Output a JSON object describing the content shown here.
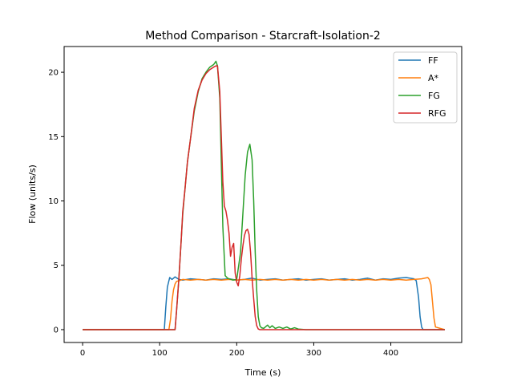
{
  "chart_data": {
    "type": "line",
    "title": "Method Comparison - Starcraft-Isolation-2",
    "xlabel": "Time (s)",
    "ylabel": "Flow (units/s)",
    "xlim": [
      -24,
      492
    ],
    "ylim": [
      -1.0,
      22.0
    ],
    "xticks": [
      0,
      100,
      200,
      300,
      400
    ],
    "yticks": [
      0,
      5,
      10,
      15,
      20
    ],
    "grid": false,
    "legend": "top-right",
    "series": [
      {
        "name": "FF",
        "color": "#1f77b4",
        "x": [
          0,
          106,
          108,
          110,
          113,
          116,
          120,
          125,
          130,
          140,
          150,
          160,
          170,
          180,
          190,
          200,
          210,
          220,
          230,
          240,
          250,
          260,
          270,
          280,
          290,
          300,
          310,
          320,
          330,
          340,
          350,
          360,
          370,
          380,
          390,
          400,
          410,
          420,
          430,
          433,
          436,
          438,
          440,
          442,
          470
        ],
        "y": [
          0,
          0,
          1.8,
          3.3,
          4.05,
          3.9,
          4.1,
          3.9,
          3.85,
          3.95,
          3.9,
          3.85,
          3.95,
          3.9,
          3.95,
          3.85,
          3.9,
          4.0,
          3.85,
          3.9,
          3.95,
          3.85,
          3.9,
          3.95,
          3.85,
          3.9,
          3.95,
          3.85,
          3.9,
          3.95,
          3.85,
          3.9,
          4.0,
          3.85,
          3.95,
          3.9,
          4.0,
          4.05,
          3.95,
          3.8,
          2.5,
          1.0,
          0.2,
          0,
          0
        ]
      },
      {
        "name": "A*",
        "color": "#ff7f0e",
        "x": [
          0,
          112,
          114,
          116,
          118,
          120,
          122,
          125,
          130,
          140,
          150,
          160,
          170,
          180,
          190,
          200,
          210,
          220,
          230,
          240,
          250,
          260,
          270,
          280,
          290,
          300,
          310,
          320,
          330,
          340,
          350,
          360,
          370,
          380,
          390,
          400,
          410,
          420,
          430,
          440,
          448,
          450,
          452,
          454,
          456,
          458,
          470
        ],
        "y": [
          0,
          0,
          0.8,
          2.2,
          3.1,
          3.55,
          3.75,
          3.8,
          3.9,
          3.85,
          3.9,
          3.85,
          3.9,
          3.85,
          3.9,
          3.85,
          3.9,
          3.85,
          3.9,
          3.85,
          3.9,
          3.85,
          3.9,
          3.85,
          3.9,
          3.85,
          3.9,
          3.85,
          3.9,
          3.85,
          3.9,
          3.85,
          3.9,
          3.85,
          3.9,
          3.85,
          3.9,
          3.85,
          3.9,
          3.95,
          4.05,
          3.9,
          3.5,
          2.2,
          0.9,
          0.2,
          0
        ]
      },
      {
        "name": "FG",
        "color": "#2ca02c",
        "x": [
          0,
          120,
          122,
          125,
          128,
          130,
          133,
          136,
          140,
          145,
          150,
          155,
          160,
          165,
          170,
          173,
          175,
          178,
          180,
          182,
          185,
          188,
          190,
          195,
          200,
          205,
          208,
          211,
          214,
          217,
          220,
          222,
          224,
          226,
          228,
          230,
          232,
          235,
          240,
          243,
          246,
          250,
          255,
          260,
          265,
          270,
          275,
          280,
          290,
          470
        ],
        "y": [
          0,
          0,
          1.5,
          4.0,
          7.0,
          9.0,
          11.0,
          13.0,
          14.8,
          17.0,
          18.5,
          19.5,
          20.0,
          20.4,
          20.6,
          20.85,
          20.5,
          18.0,
          13.0,
          8.0,
          4.2,
          4.0,
          3.95,
          3.85,
          3.9,
          6.0,
          9.0,
          12.0,
          13.8,
          14.4,
          13.2,
          10.0,
          6.0,
          3.0,
          1.0,
          0.3,
          0.15,
          0.1,
          0.35,
          0.15,
          0.3,
          0.1,
          0.2,
          0.1,
          0.2,
          0.05,
          0.15,
          0.05,
          0,
          0
        ]
      },
      {
        "name": "RFG",
        "color": "#d62728",
        "x": [
          0,
          120,
          122,
          125,
          128,
          130,
          133,
          136,
          140,
          145,
          150,
          155,
          160,
          165,
          170,
          173,
          175,
          178,
          180,
          182,
          184,
          186,
          188,
          190,
          192,
          194,
          196,
          198,
          200,
          202,
          204,
          206,
          208,
          210,
          212,
          214,
          216,
          218,
          220,
          222,
          224,
          226,
          228,
          230,
          240,
          470
        ],
        "y": [
          0,
          0,
          1.5,
          4.0,
          7.0,
          9.2,
          11.0,
          13.0,
          14.8,
          17.2,
          18.6,
          19.4,
          19.9,
          20.2,
          20.4,
          20.5,
          20.5,
          18.5,
          15.0,
          11.5,
          9.6,
          9.2,
          8.5,
          7.5,
          5.7,
          6.4,
          6.7,
          4.4,
          3.7,
          3.4,
          4.2,
          5.5,
          6.5,
          7.3,
          7.7,
          7.8,
          7.4,
          6.0,
          4.0,
          2.4,
          1.0,
          0.3,
          0.05,
          0,
          0,
          0
        ]
      }
    ]
  }
}
